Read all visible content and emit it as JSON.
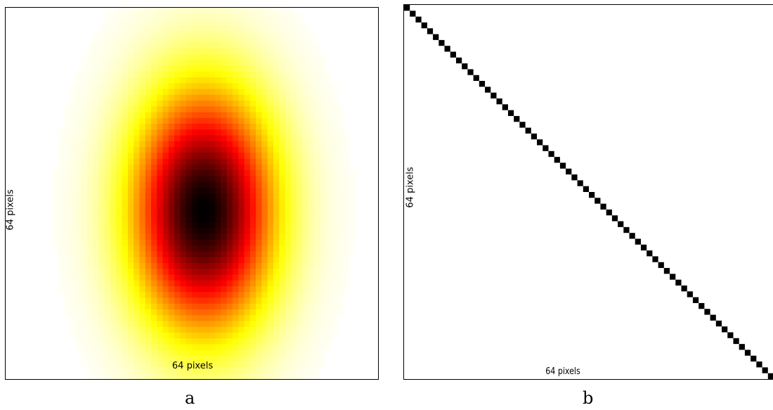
{
  "chart_data": [
    {
      "type": "heatmap",
      "panel_caption": "a",
      "grid_size": [
        64,
        64
      ],
      "xlabel": "64 pixels",
      "ylabel": "64 pixels",
      "description_values": {
        "center": [
          34,
          35
        ],
        "sigma_x": 8.5,
        "sigma_y": 14.5,
        "peak": 1.0
      },
      "colormap": "hot_reversed",
      "colors": [
        "#ffffff",
        "#ffff00",
        "#ff0000",
        "#000000"
      ]
    },
    {
      "type": "heatmap",
      "panel_caption": "b",
      "grid_size": [
        64,
        64
      ],
      "xlabel": "64 pixels",
      "ylabel": "64 pixels",
      "pattern": "identity",
      "colors": [
        "#ffffff",
        "#000000"
      ]
    }
  ]
}
